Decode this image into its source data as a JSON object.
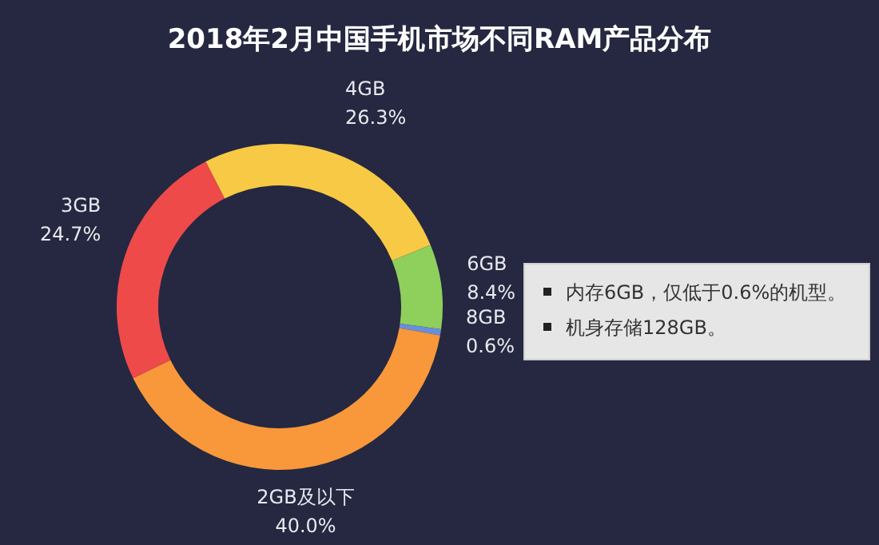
{
  "chart_data": {
    "type": "donut",
    "title": "2018年2月中国手机市场不同RAM产品分布",
    "categories": [
      "4GB",
      "6GB",
      "8GB",
      "2GB及以下",
      "3GB"
    ],
    "values": [
      26.3,
      8.4,
      0.6,
      40.0,
      24.7
    ],
    "colors": [
      "#f8c945",
      "#8fcf5b",
      "#6a8fd8",
      "#f8983a",
      "#ee4a4a"
    ],
    "value_labels": [
      "26.3%",
      "8.4%",
      "0.6%",
      "40.0%",
      "24.7%"
    ],
    "annotations": [
      "内存6GB，仅低于0.6%的机型。",
      "机身存储128GB。"
    ]
  }
}
